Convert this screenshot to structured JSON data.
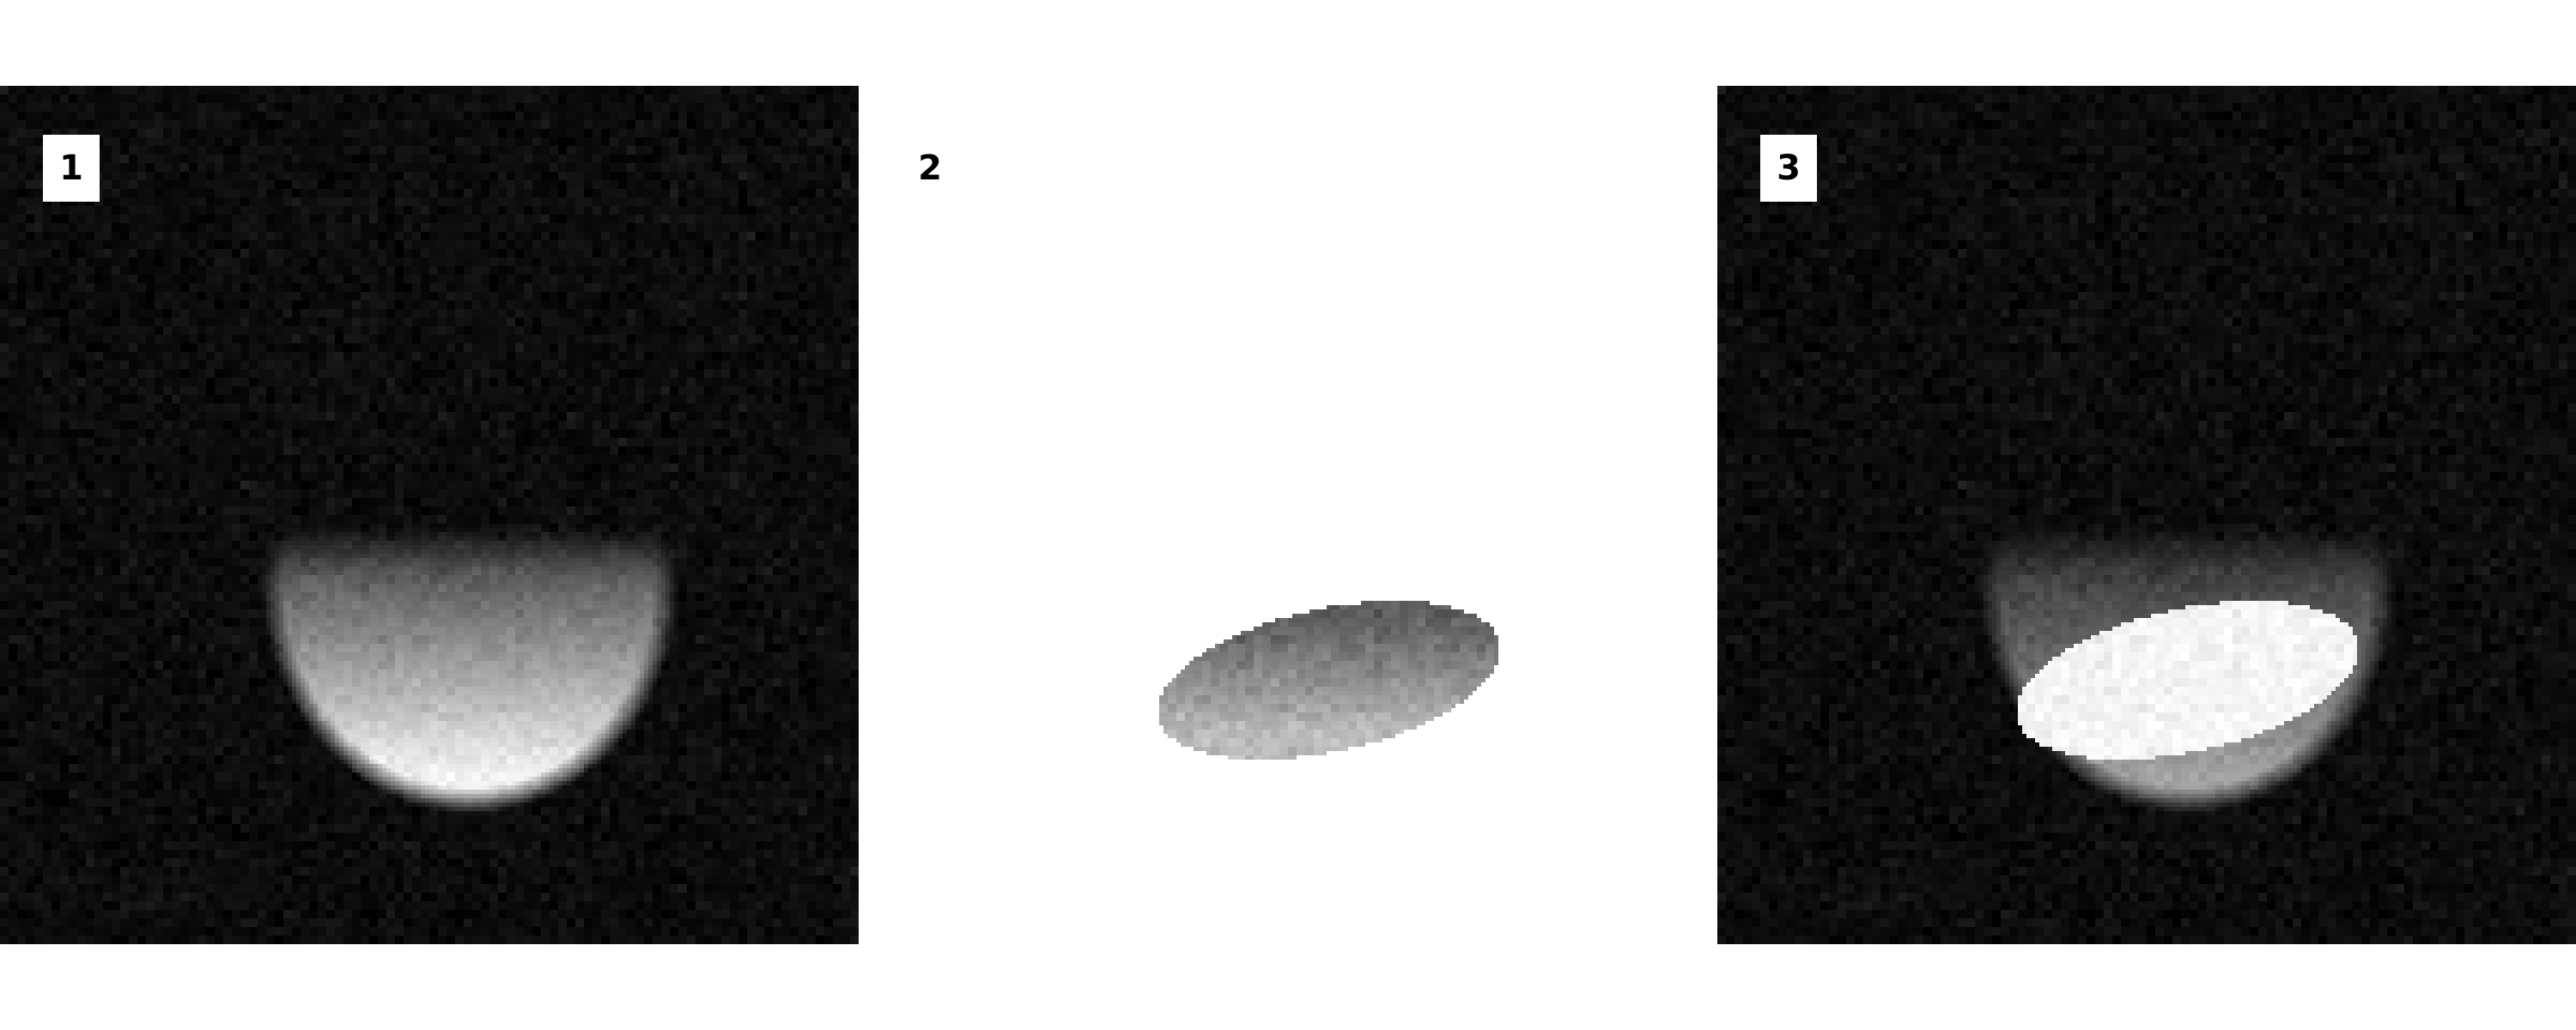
{
  "panels": [
    {
      "label": "1",
      "kind": "noisy-scan",
      "background": "#0a0a0a"
    },
    {
      "label": "2",
      "kind": "segmented-region",
      "background": "#ffffff"
    },
    {
      "label": "3",
      "kind": "thresholded-overlay",
      "background": "#0a0a0a"
    }
  ],
  "colors": {
    "dark_background": "#0a0a0a",
    "light_background": "#ffffff",
    "label_text": "#000000",
    "label_box": "#ffffff"
  }
}
